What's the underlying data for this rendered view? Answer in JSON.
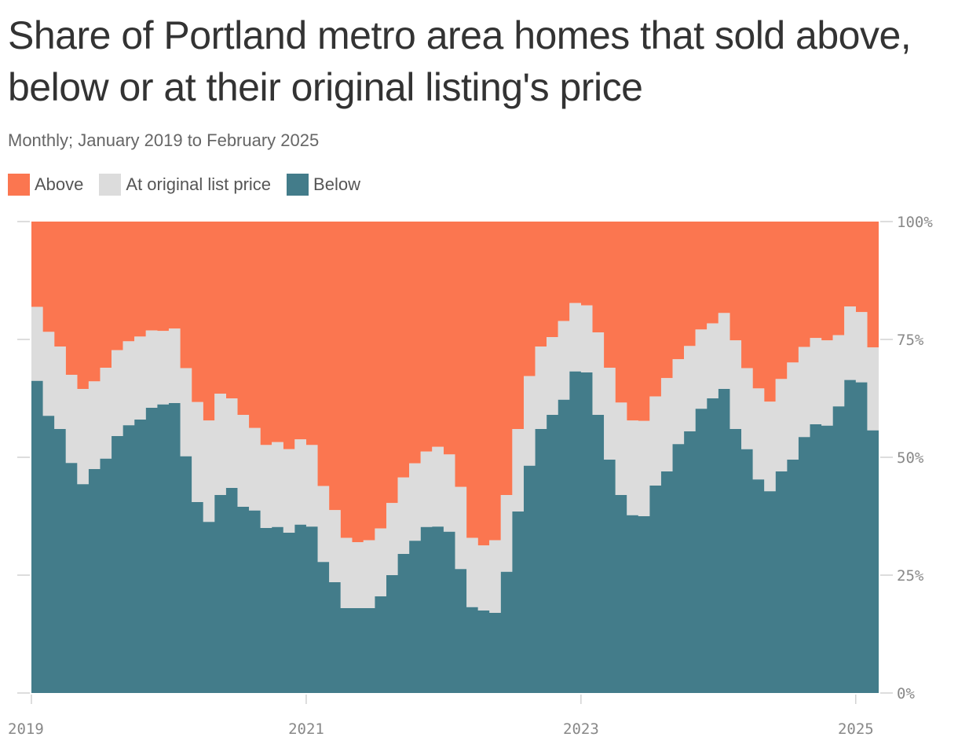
{
  "chart_data": {
    "type": "area",
    "stacked": true,
    "title": "Share of Portland metro area homes that sold above, below or at their original listing's price",
    "subtitle": "Monthly; January 2019 to February 2025",
    "y_ticks": [
      "0%",
      "25%",
      "50%",
      "75%",
      "100%"
    ],
    "x_ticks": [
      "2019",
      "2021",
      "2023",
      "2025"
    ],
    "ylim": [
      0,
      100
    ],
    "x_start": "2019-01",
    "x_end": "2025-02",
    "legend_position": "top-left",
    "series": [
      {
        "name": "Above",
        "color": "#fb7650"
      },
      {
        "name": "At original list price",
        "color": "#dcdcdc"
      },
      {
        "name": "Below",
        "color": "#437c8a"
      }
    ],
    "below": [
      66.2,
      58.8,
      56.0,
      48.8,
      44.3,
      47.5,
      49.7,
      54.5,
      56.8,
      58.0,
      60.5,
      61.2,
      61.5,
      50.2,
      40.5,
      36.3,
      42.0,
      43.5,
      39.5,
      38.7,
      35.0,
      35.2,
      34.0,
      35.7,
      35.3,
      27.8,
      23.5,
      18.0,
      18.0,
      18.0,
      20.5,
      25.0,
      29.5,
      32.3,
      35.2,
      35.3,
      34.2,
      26.3,
      18.2,
      17.5,
      17.0,
      25.7,
      38.5,
      48.2,
      56.0,
      59.0,
      62.2,
      68.2,
      68.0,
      59.0,
      49.5,
      42.0,
      37.7,
      37.5,
      44.0,
      47.0,
      52.8,
      55.5,
      60.3,
      62.5,
      64.5,
      56.0,
      51.7,
      45.3,
      42.8,
      47.0,
      49.5,
      54.3,
      57.0,
      56.7,
      60.8,
      66.4,
      65.9,
      55.7
    ],
    "below_plus_at": [
      81.9,
      76.6,
      73.5,
      67.5,
      64.5,
      66.1,
      69.0,
      72.7,
      74.6,
      75.6,
      76.9,
      76.8,
      77.3,
      68.9,
      61.7,
      57.8,
      63.5,
      62.5,
      59.0,
      56.2,
      52.6,
      53.2,
      51.7,
      53.8,
      52.6,
      43.9,
      38.8,
      32.9,
      32.0,
      32.4,
      34.9,
      40.3,
      45.7,
      48.7,
      51.2,
      52.2,
      50.6,
      43.7,
      32.9,
      31.3,
      32.4,
      42.0,
      56.0,
      67.2,
      73.5,
      75.5,
      78.9,
      82.7,
      82.2,
      76.5,
      69.0,
      61.6,
      57.8,
      57.7,
      62.9,
      66.8,
      70.8,
      73.6,
      77.1,
      78.4,
      80.6,
      74.8,
      68.9,
      64.6,
      61.8,
      66.6,
      70.1,
      73.4,
      75.3,
      74.8,
      75.9,
      82.0,
      80.8,
      73.3
    ]
  }
}
